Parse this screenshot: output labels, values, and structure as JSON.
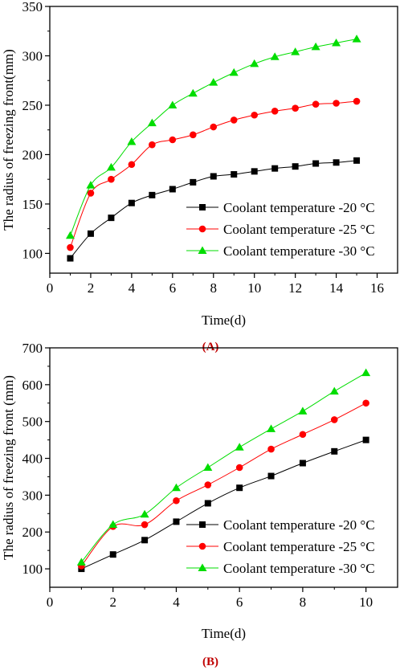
{
  "chart_data": [
    {
      "type": "line",
      "panel_label": "(A)",
      "title": "",
      "xlabel": "Time(d)",
      "ylabel": "The radius of freezing front(mm)",
      "xlim": [
        0,
        17
      ],
      "ylim": [
        80,
        350
      ],
      "xticks": [
        0,
        2,
        4,
        6,
        8,
        10,
        12,
        14,
        16
      ],
      "yticks": [
        100,
        150,
        200,
        250,
        300,
        350
      ],
      "grid": false,
      "legend_position": "bottom-right",
      "x": [
        1,
        2,
        3,
        4,
        5,
        6,
        7,
        8,
        9,
        10,
        11,
        12,
        13,
        14,
        15
      ],
      "series": [
        {
          "name": "Coolant temperature -20 °C",
          "color": "#000000",
          "marker": "square",
          "values": [
            95,
            120,
            136,
            151,
            159,
            165,
            172,
            178,
            180,
            183,
            186,
            188,
            191,
            192,
            194
          ]
        },
        {
          "name": "Coolant temperature -25 °C",
          "color": "#ff0000",
          "marker": "circle",
          "values": [
            106,
            161,
            175,
            190,
            210,
            215,
            220,
            228,
            235,
            240,
            244,
            247,
            251,
            252,
            254
          ]
        },
        {
          "name": "Coolant temperature -30 °C",
          "color": "#00dd00",
          "marker": "triangle",
          "values": [
            118,
            169,
            187,
            213,
            232,
            250,
            262,
            273,
            283,
            292,
            299,
            304,
            309,
            313,
            317
          ]
        }
      ]
    },
    {
      "type": "line",
      "panel_label": "(B)",
      "title": "",
      "xlabel": "Time(d)",
      "ylabel": "The radius of freezing front (mm)",
      "xlim": [
        0,
        11
      ],
      "ylim": [
        50,
        700
      ],
      "xticks": [
        0,
        2,
        4,
        6,
        8,
        10
      ],
      "yticks": [
        100,
        200,
        300,
        400,
        500,
        600,
        700
      ],
      "grid": false,
      "legend_position": "bottom-right",
      "x": [
        1,
        2,
        3,
        4,
        5,
        6,
        7,
        8,
        9,
        10
      ],
      "series": [
        {
          "name": "Coolant temperature -20 °C",
          "color": "#000000",
          "marker": "square",
          "values": [
            100,
            139,
            178,
            228,
            278,
            320,
            352,
            387,
            419,
            450
          ]
        },
        {
          "name": "Coolant temperature -25 °C",
          "color": "#ff0000",
          "marker": "circle",
          "values": [
            108,
            215,
            220,
            285,
            328,
            375,
            425,
            465,
            505,
            550
          ]
        },
        {
          "name": "Coolant temperature -30 °C",
          "color": "#00dd00",
          "marker": "triangle",
          "values": [
            118,
            220,
            248,
            320,
            375,
            430,
            480,
            528,
            582,
            632
          ]
        }
      ]
    }
  ]
}
